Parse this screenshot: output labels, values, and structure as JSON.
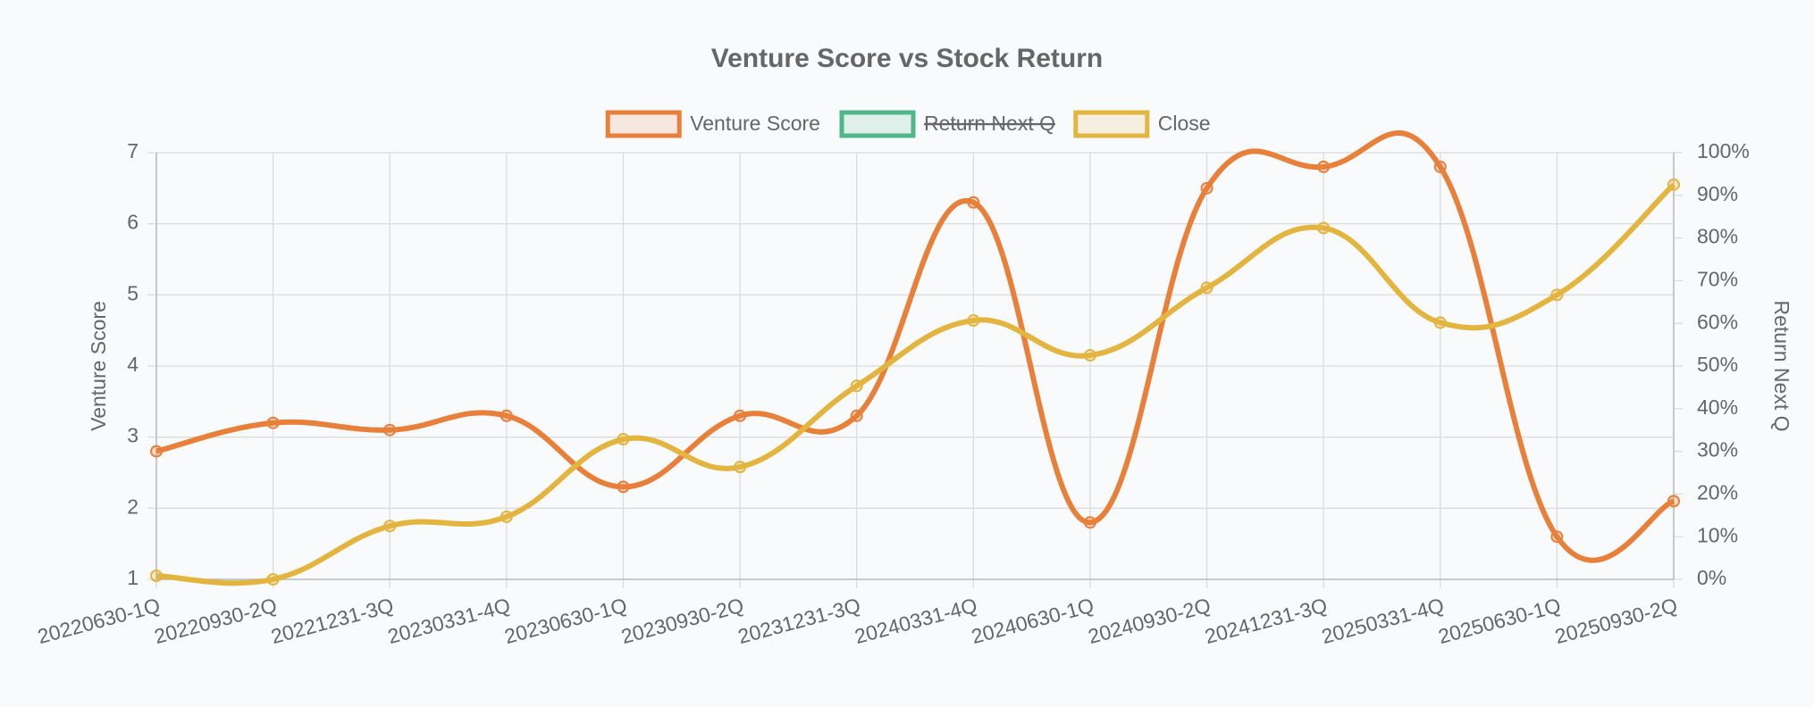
{
  "chart_data": {
    "type": "line",
    "title": "Venture Score vs Stock Return",
    "categories": [
      "20220630-1Q",
      "20220930-2Q",
      "20221231-3Q",
      "20230331-4Q",
      "20230630-1Q",
      "20230930-2Q",
      "20231231-3Q",
      "20240331-4Q",
      "20240630-1Q",
      "20240930-2Q",
      "20241231-3Q",
      "20250331-4Q",
      "20250630-1Q",
      "20250930-2Q"
    ],
    "series": [
      {
        "name": "Venture Score",
        "color": "#e8803a",
        "axis": "y",
        "values": [
          2.8,
          3.2,
          3.1,
          3.3,
          2.3,
          3.3,
          3.3,
          6.3,
          1.8,
          6.5,
          6.8,
          6.8,
          1.6,
          2.1
        ]
      },
      {
        "name": "Return Next Q",
        "color": "#52b788",
        "axis": "y2",
        "hidden": true,
        "values": [
          null,
          null,
          null,
          null,
          null,
          null,
          null,
          null,
          null,
          null,
          null,
          null,
          null,
          null
        ]
      },
      {
        "name": "Close",
        "color": "#e3b53f",
        "axis": "y",
        "values": [
          1.05,
          1.0,
          1.75,
          1.88,
          2.97,
          2.58,
          3.72,
          4.64,
          4.15,
          5.1,
          5.94,
          4.61,
          5.0,
          6.55
        ]
      }
    ],
    "ylabel": "Venture Score",
    "y2label": "Return Next Q",
    "ylim": [
      1,
      7
    ],
    "yticks": [
      1,
      2,
      3,
      4,
      5,
      6,
      7
    ],
    "y2lim": [
      0,
      100
    ],
    "y2ticks": [
      {
        "value": 0,
        "label": "0%"
      },
      {
        "value": 10,
        "label": "10%"
      },
      {
        "value": 20,
        "label": "20%"
      },
      {
        "value": 30,
        "label": "30%"
      },
      {
        "value": 40,
        "label": "40%"
      },
      {
        "value": 50,
        "label": "50%"
      },
      {
        "value": 60,
        "label": "60%"
      },
      {
        "value": 70,
        "label": "70%"
      },
      {
        "value": 80,
        "label": "80%"
      },
      {
        "value": 90,
        "label": "90%"
      },
      {
        "value": 100,
        "label": "100%"
      }
    ],
    "grid": true,
    "legend": "top"
  }
}
